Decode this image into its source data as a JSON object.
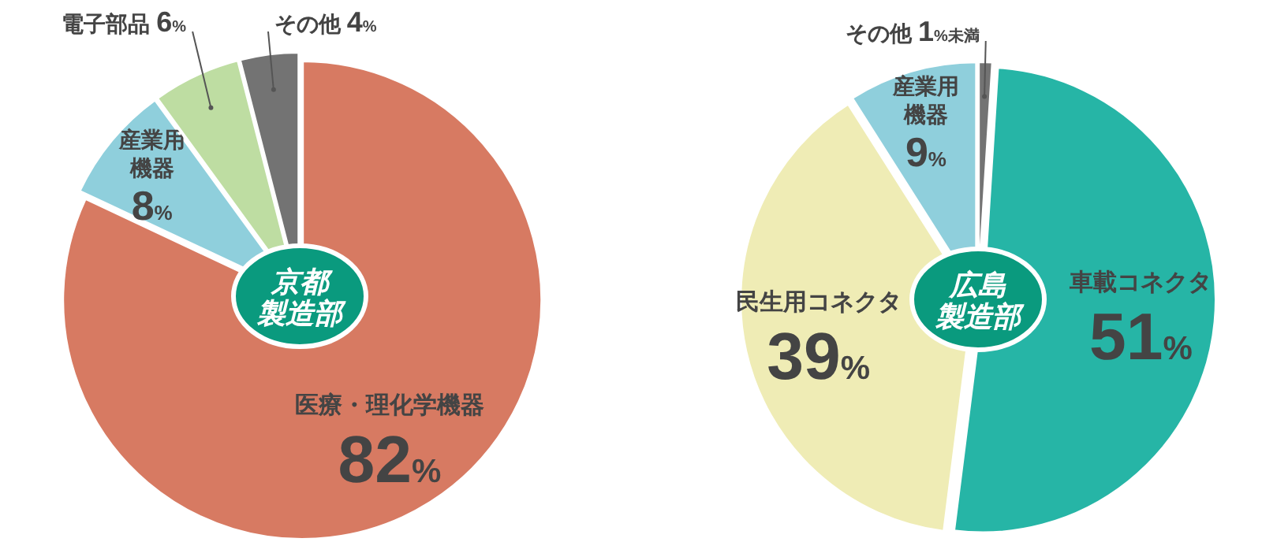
{
  "chart_data": [
    {
      "type": "pie",
      "title": "京都製造部",
      "categories": [
        "医療・理化学機器",
        "産業用機器",
        "電子部品",
        "その他"
      ],
      "values": [
        82,
        8,
        6,
        4
      ],
      "value_labels": [
        "82%",
        "8%",
        "6%",
        "4%"
      ],
      "colors": [
        "#d77a62",
        "#8fcfdc",
        "#bedda2",
        "#737373"
      ]
    },
    {
      "type": "pie",
      "title": "広島製造部",
      "categories": [
        "その他",
        "車載コネクタ",
        "民生用コネクタ",
        "産業用機器"
      ],
      "values": [
        1,
        51,
        39,
        9
      ],
      "value_labels": [
        "1%未満",
        "51%",
        "39%",
        "9%"
      ],
      "colors": [
        "#737373",
        "#26b5a6",
        "#efecb5",
        "#8fcfdc"
      ]
    }
  ]
}
